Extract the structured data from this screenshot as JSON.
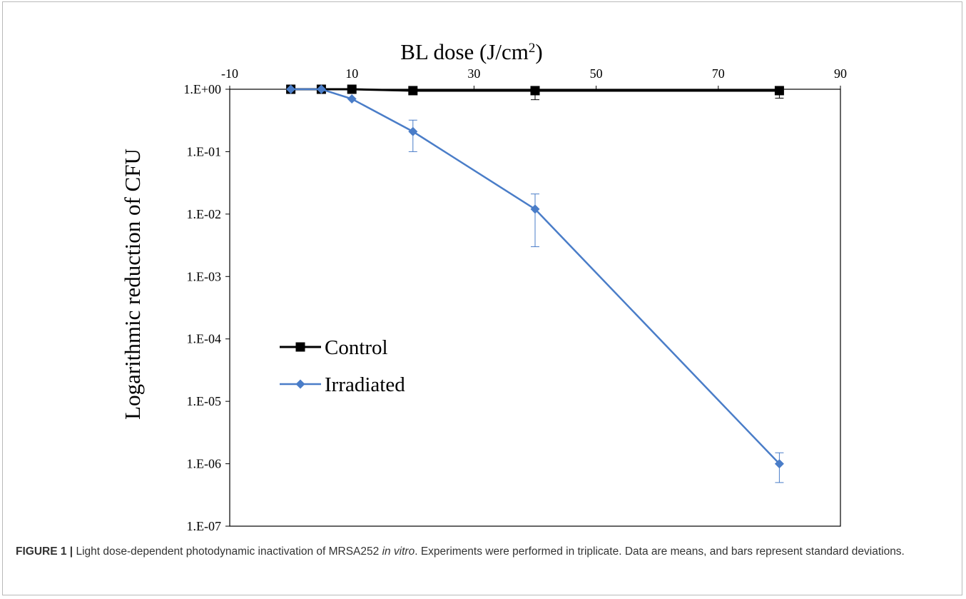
{
  "chart_data": {
    "type": "line",
    "title": "",
    "xlabel": {
      "main": "BL dose (J/cm",
      "sup": "2",
      "end": ")"
    },
    "ylabel": "Logarithmic reduction of CFU",
    "x_axis_position": "top",
    "xlim": [
      -10,
      90
    ],
    "x_ticks": [
      -10,
      10,
      30,
      50,
      70,
      90
    ],
    "y_scale": "log",
    "ylim": [
      1e-07,
      1
    ],
    "y_ticks": [
      {
        "value": 1,
        "label": "1.E+00"
      },
      {
        "value": 0.1,
        "label": "1.E-01"
      },
      {
        "value": 0.01,
        "label": "1.E-02"
      },
      {
        "value": 0.001,
        "label": "1.E-03"
      },
      {
        "value": 0.0001,
        "label": "1.E-04"
      },
      {
        "value": 1e-05,
        "label": "1.E-05"
      },
      {
        "value": 1e-06,
        "label": "1.E-06"
      },
      {
        "value": 1e-07,
        "label": "1.E-07"
      }
    ],
    "grid": false,
    "legend_position": "lower-left",
    "series": [
      {
        "name": "Control",
        "color": "#000000",
        "marker": "square",
        "points": [
          {
            "x": 0,
            "y": 1,
            "err_low": 1,
            "err_high": 1
          },
          {
            "x": 5,
            "y": 1,
            "err_low": 1,
            "err_high": 1
          },
          {
            "x": 10,
            "y": 1,
            "err_low": 1,
            "err_high": 1
          },
          {
            "x": 20,
            "y": 0.95,
            "err_low": 0.82,
            "err_high": 1
          },
          {
            "x": 40,
            "y": 0.95,
            "err_low": 0.68,
            "err_high": 1
          },
          {
            "x": 80,
            "y": 0.95,
            "err_low": 0.72,
            "err_high": 1
          }
        ]
      },
      {
        "name": "Irradiated",
        "color": "#4a7dc8",
        "marker": "diamond",
        "points": [
          {
            "x": 0,
            "y": 1,
            "err_low": 1,
            "err_high": 1
          },
          {
            "x": 5,
            "y": 1,
            "err_low": 1,
            "err_high": 1
          },
          {
            "x": 10,
            "y": 0.7,
            "err_low": 0.7,
            "err_high": 0.7
          },
          {
            "x": 20,
            "y": 0.21,
            "err_low": 0.1,
            "err_high": 0.32
          },
          {
            "x": 40,
            "y": 0.012,
            "err_low": 0.003,
            "err_high": 0.021
          },
          {
            "x": 80,
            "y": 1e-06,
            "err_low": 5e-07,
            "err_high": 1.5e-06
          }
        ]
      }
    ]
  },
  "caption": {
    "lead": "FIGURE 1 |",
    "text_1": " Light dose-dependent photodynamic inactivation of MRSA252 ",
    "italic": "in vitro",
    "text_2": ". Experiments were performed in triplicate. Data are means, and bars represent standard deviations."
  }
}
